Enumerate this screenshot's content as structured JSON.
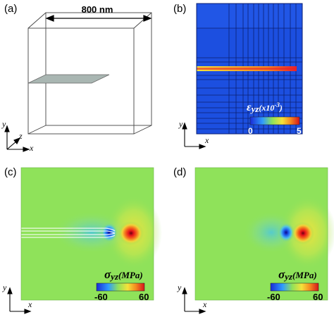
{
  "panels": {
    "a": {
      "label": "(a)",
      "dimension": "800 nm",
      "axes": {
        "y": "y",
        "z": "z",
        "x": "x"
      }
    },
    "b": {
      "label": "(b)",
      "axes": {
        "y": "y",
        "x": "x"
      },
      "colorbar": {
        "symbol": "ε",
        "subscript": "yz",
        "unit": "(x10",
        "exponent": "-3",
        "unit_close": ")",
        "min": "0",
        "max": "5"
      }
    },
    "c": {
      "label": "(c)",
      "axes": {
        "y": "y",
        "x": "x"
      },
      "colorbar": {
        "symbol": "σ",
        "subscript": "yz",
        "unit": "(MPa)",
        "min": "-60",
        "max": "60"
      }
    },
    "d": {
      "label": "(d)",
      "axes": {
        "y": "y",
        "x": "x"
      },
      "colorbar": {
        "symbol": "σ",
        "subscript": "yz",
        "unit": "(MPa)",
        "min": "-60",
        "max": "60"
      }
    }
  },
  "colors": {
    "field_blue": "#1c4fe0",
    "field_green": "#8fe25a",
    "grid_dark": "#0b1f72",
    "dislocation_red": "#e8202a"
  }
}
